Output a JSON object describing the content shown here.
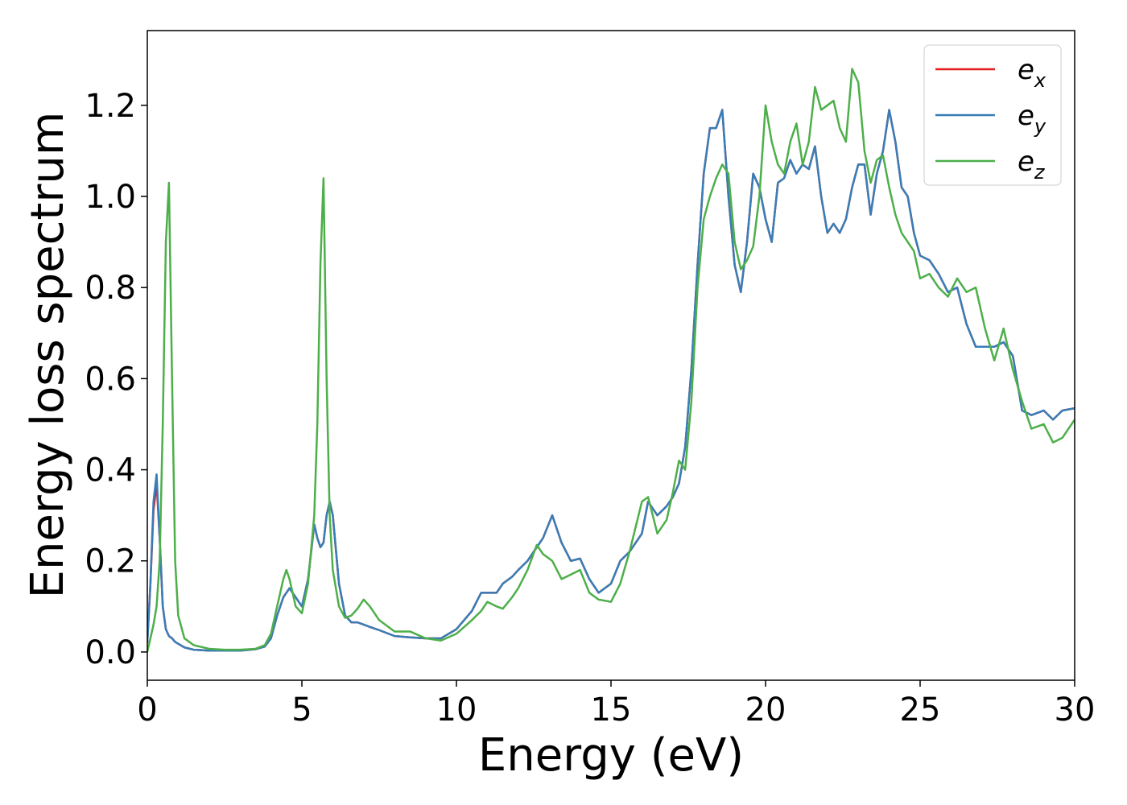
{
  "chart_data": {
    "type": "line",
    "xlabel": "Energy (eV)",
    "ylabel": "Energy loss spectrum",
    "x": [
      0,
      0.1,
      0.2,
      0.3,
      0.4,
      0.5,
      0.6,
      0.7,
      0.8,
      0.9,
      1.0,
      1.2,
      1.5,
      2,
      2.5,
      3,
      3.5,
      3.8,
      4.0,
      4.2,
      4.4,
      4.5,
      4.6,
      4.8,
      5.0,
      5.2,
      5.4,
      5.5,
      5.6,
      5.7,
      5.8,
      5.9,
      6.0,
      6.2,
      6.4,
      6.6,
      6.8,
      7.0,
      7.2,
      7.5,
      8,
      8.5,
      9,
      9.5,
      10,
      10.5,
      10.8,
      11,
      11.3,
      11.5,
      11.8,
      12,
      12.3,
      12.6,
      12.8,
      13.1,
      13.4,
      13.7,
      14,
      14.3,
      14.6,
      15,
      15.3,
      15.6,
      16,
      16.2,
      16.5,
      16.8,
      17,
      17.2,
      17.4,
      17.6,
      17.8,
      18,
      18.2,
      18.4,
      18.6,
      18.8,
      19,
      19.2,
      19.4,
      19.6,
      19.8,
      20,
      20.2,
      20.4,
      20.6,
      20.8,
      21,
      21.2,
      21.4,
      21.6,
      21.8,
      22,
      22.2,
      22.4,
      22.6,
      22.8,
      23,
      23.2,
      23.4,
      23.6,
      23.8,
      24,
      24.2,
      24.4,
      24.6,
      24.8,
      25,
      25.3,
      25.6,
      25.9,
      26.2,
      26.5,
      26.8,
      27.1,
      27.4,
      27.7,
      28,
      28.3,
      28.6,
      29,
      29.3,
      29.6,
      30
    ],
    "series": [
      {
        "name": "e_x",
        "color": "#e41a1c",
        "values": [
          0.02,
          0.15,
          0.31,
          0.37,
          0.25,
          0.1,
          0.05,
          0.035,
          0.03,
          0.022,
          0.018,
          0.01,
          0.005,
          0.003,
          0.003,
          0.003,
          0.006,
          0.012,
          0.03,
          0.08,
          0.12,
          0.13,
          0.14,
          0.12,
          0.1,
          0.16,
          0.28,
          0.25,
          0.23,
          0.24,
          0.3,
          0.33,
          0.3,
          0.15,
          0.08,
          0.065,
          0.065,
          0.06,
          0.055,
          0.048,
          0.035,
          0.032,
          0.03,
          0.03,
          0.05,
          0.09,
          0.13,
          0.13,
          0.13,
          0.15,
          0.165,
          0.18,
          0.2,
          0.23,
          0.25,
          0.3,
          0.24,
          0.2,
          0.205,
          0.16,
          0.13,
          0.15,
          0.2,
          0.22,
          0.26,
          0.33,
          0.3,
          0.32,
          0.34,
          0.37,
          0.45,
          0.62,
          0.85,
          1.05,
          1.15,
          1.15,
          1.19,
          1.0,
          0.85,
          0.79,
          0.9,
          1.05,
          1.02,
          0.95,
          0.9,
          1.03,
          1.04,
          1.08,
          1.05,
          1.07,
          1.06,
          1.11,
          1.0,
          0.92,
          0.94,
          0.92,
          0.95,
          1.02,
          1.07,
          1.07,
          0.96,
          1.05,
          1.1,
          1.19,
          1.12,
          1.02,
          1.0,
          0.92,
          0.87,
          0.86,
          0.83,
          0.79,
          0.8,
          0.72,
          0.67,
          0.67,
          0.67,
          0.68,
          0.65,
          0.53,
          0.52,
          0.53,
          0.51,
          0.53,
          0.535
        ]
      },
      {
        "name": "e_y",
        "color": "#377eb8",
        "values": [
          0.02,
          0.15,
          0.33,
          0.39,
          0.25,
          0.1,
          0.05,
          0.035,
          0.03,
          0.022,
          0.018,
          0.01,
          0.005,
          0.003,
          0.003,
          0.003,
          0.006,
          0.012,
          0.03,
          0.08,
          0.12,
          0.13,
          0.14,
          0.12,
          0.1,
          0.16,
          0.28,
          0.25,
          0.23,
          0.24,
          0.3,
          0.33,
          0.3,
          0.15,
          0.08,
          0.065,
          0.065,
          0.06,
          0.055,
          0.048,
          0.035,
          0.032,
          0.03,
          0.03,
          0.05,
          0.09,
          0.13,
          0.13,
          0.13,
          0.15,
          0.165,
          0.18,
          0.2,
          0.23,
          0.25,
          0.3,
          0.24,
          0.2,
          0.205,
          0.16,
          0.13,
          0.15,
          0.2,
          0.22,
          0.26,
          0.33,
          0.3,
          0.32,
          0.34,
          0.37,
          0.45,
          0.62,
          0.85,
          1.05,
          1.15,
          1.15,
          1.19,
          1.0,
          0.85,
          0.79,
          0.9,
          1.05,
          1.02,
          0.95,
          0.9,
          1.03,
          1.04,
          1.08,
          1.05,
          1.07,
          1.06,
          1.11,
          1.0,
          0.92,
          0.94,
          0.92,
          0.95,
          1.02,
          1.07,
          1.07,
          0.96,
          1.05,
          1.1,
          1.19,
          1.12,
          1.02,
          1.0,
          0.92,
          0.87,
          0.86,
          0.83,
          0.79,
          0.8,
          0.72,
          0.67,
          0.67,
          0.67,
          0.68,
          0.65,
          0.53,
          0.52,
          0.53,
          0.51,
          0.53,
          0.535
        ]
      },
      {
        "name": "e_z",
        "color": "#4daf4a",
        "values": [
          0.0,
          0.03,
          0.06,
          0.1,
          0.2,
          0.5,
          0.9,
          1.03,
          0.6,
          0.2,
          0.08,
          0.03,
          0.015,
          0.007,
          0.005,
          0.005,
          0.007,
          0.015,
          0.04,
          0.1,
          0.16,
          0.18,
          0.16,
          0.1,
          0.085,
          0.15,
          0.3,
          0.5,
          0.85,
          1.04,
          0.6,
          0.3,
          0.18,
          0.1,
          0.075,
          0.08,
          0.095,
          0.115,
          0.1,
          0.07,
          0.045,
          0.045,
          0.03,
          0.025,
          0.04,
          0.07,
          0.09,
          0.11,
          0.1,
          0.095,
          0.12,
          0.14,
          0.18,
          0.235,
          0.215,
          0.2,
          0.16,
          0.17,
          0.18,
          0.13,
          0.115,
          0.11,
          0.15,
          0.22,
          0.33,
          0.34,
          0.26,
          0.29,
          0.35,
          0.42,
          0.4,
          0.55,
          0.8,
          0.95,
          1.0,
          1.04,
          1.07,
          1.05,
          0.9,
          0.84,
          0.86,
          0.89,
          1.0,
          1.2,
          1.12,
          1.07,
          1.05,
          1.12,
          1.16,
          1.07,
          1.12,
          1.24,
          1.19,
          1.2,
          1.21,
          1.15,
          1.12,
          1.28,
          1.25,
          1.1,
          1.03,
          1.08,
          1.09,
          1.02,
          0.96,
          0.92,
          0.9,
          0.88,
          0.82,
          0.83,
          0.8,
          0.78,
          0.82,
          0.79,
          0.8,
          0.71,
          0.64,
          0.71,
          0.62,
          0.55,
          0.49,
          0.5,
          0.46,
          0.47,
          0.51
        ]
      }
    ],
    "xlim": [
      0,
      30
    ],
    "xticks": [
      0,
      5,
      10,
      15,
      20,
      25,
      30
    ],
    "ylim": [
      -0.062,
      1.364
    ],
    "yticks": [
      {
        "value": 0,
        "label": "0.0"
      },
      {
        "value": 0.2,
        "label": "0.2"
      },
      {
        "value": 0.4,
        "label": "0.4"
      },
      {
        "value": 0.6,
        "label": "0.6"
      },
      {
        "value": 0.8,
        "label": "0.8"
      },
      {
        "value": 1.0,
        "label": "1.0"
      },
      {
        "value": 1.2,
        "label": "1.2"
      }
    ],
    "legend": "upper right"
  }
}
